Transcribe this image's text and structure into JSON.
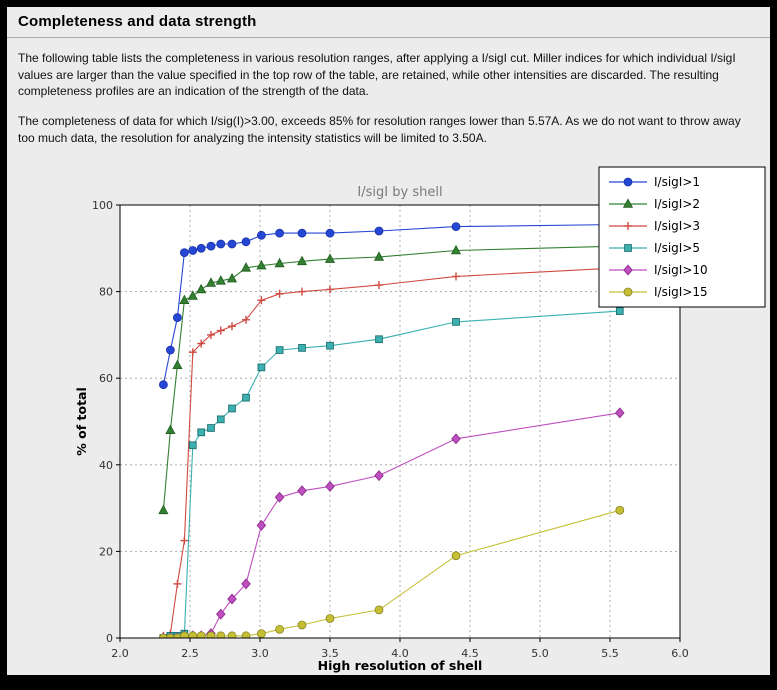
{
  "header": {
    "title": "Completeness and data strength"
  },
  "paragraphs": [
    "The following table lists the completeness in various resolution ranges, after applying a I/sigI cut. Miller indices for which individual I/sigI values are larger than the value specified in the top row of the table, are retained, while other intensities are discarded. The resulting completeness profiles are an indication of the strength of the data.",
    "The completeness of data for which I/sig(I)>3.00, exceeds  85% for resolution ranges lower than 5.57A. As we do not want to throw away too much data, the resolution for analyzing the intensity statistics will be limited to 3.50A."
  ],
  "colors": {
    "frame": "#000000",
    "panel_bg": "#ececec",
    "plot_bg": "#ffffff",
    "grid": "#9a9a9a",
    "axis_frame": "#000000",
    "title_text": "#7a7a7a",
    "tick_text": "#333333"
  },
  "chart_data": {
    "type": "line",
    "title": "I/sigI by shell",
    "xlabel": "High resolution of shell",
    "ylabel": "% of total",
    "xlim": [
      2.0,
      6.0
    ],
    "ylim": [
      0,
      100
    ],
    "grid": "dashed",
    "legend_position": "top-right",
    "xticks": [
      2.0,
      2.5,
      3.0,
      3.5,
      4.0,
      4.5,
      5.0,
      5.5,
      6.0
    ],
    "xtick_labels": [
      "2.0",
      "2.5",
      "3.0",
      "3.5",
      "4.0",
      "4.5",
      "5.0",
      "5.5",
      "6.0"
    ],
    "yticks": [
      0,
      20,
      40,
      60,
      80,
      100
    ],
    "ytick_labels": [
      "0",
      "20",
      "40",
      "60",
      "80",
      "100"
    ],
    "x": [
      2.31,
      2.36,
      2.41,
      2.46,
      2.52,
      2.58,
      2.65,
      2.72,
      2.8,
      2.9,
      3.01,
      3.14,
      3.3,
      3.5,
      3.85,
      4.4,
      5.57
    ],
    "series": [
      {
        "name": "I/sigI>1",
        "color": "#2646d4",
        "edge": "#1b33a8",
        "marker": "circle",
        "values": [
          58.5,
          66.5,
          74,
          89,
          89.5,
          90,
          90.5,
          91,
          91,
          91.5,
          93,
          93.5,
          93.5,
          93.5,
          94,
          95,
          95.5
        ]
      },
      {
        "name": "I/sigI>2",
        "color": "#338033",
        "edge": "#1f5c1f",
        "marker": "triangle",
        "values": [
          29.5,
          48,
          63,
          78,
          79,
          80.5,
          82,
          82.5,
          83,
          85.5,
          86,
          86.5,
          87,
          87.5,
          88,
          89.5,
          90.5
        ]
      },
      {
        "name": "I/sigI>3",
        "color": "#cf4a42",
        "edge": "#a33630",
        "marker": "plus",
        "values": [
          0.5,
          1,
          12.5,
          22.5,
          66,
          68,
          70,
          71,
          72,
          73.5,
          78,
          79.5,
          80,
          80.5,
          81.5,
          83.5,
          85.5
        ]
      },
      {
        "name": "I/sigI>5",
        "color": "#3cb0b0",
        "edge": "#1f7070",
        "marker": "square",
        "values": [
          0,
          0.5,
          0.5,
          1,
          44.5,
          47.5,
          48.5,
          50.5,
          53,
          55.5,
          62.5,
          66.5,
          67,
          67.5,
          69,
          73,
          75.5
        ]
      },
      {
        "name": "I/sigI>10",
        "color": "#bf4fbf",
        "edge": "#8f2e8f",
        "marker": "diamond",
        "values": [
          0,
          0,
          0,
          0.5,
          0.5,
          0.5,
          1,
          5.5,
          9,
          12.5,
          26,
          32.5,
          34,
          35,
          37.5,
          46,
          52
        ]
      },
      {
        "name": "I/sigI>15",
        "color": "#c5bf36",
        "edge": "#8a8420",
        "marker": "circle",
        "values": [
          0,
          0,
          0,
          0.5,
          0.5,
          0.5,
          0.5,
          0.5,
          0.5,
          0.5,
          1,
          2,
          3,
          4.5,
          6.5,
          19,
          29.5
        ]
      }
    ]
  }
}
